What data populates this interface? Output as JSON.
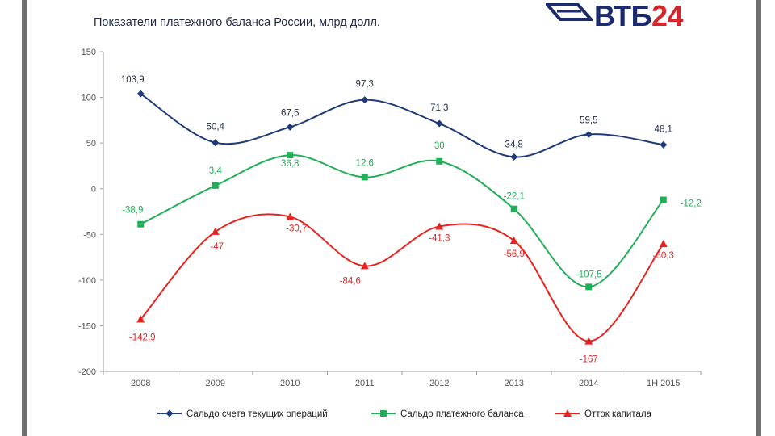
{
  "header": {
    "title": "Показатели платежного баланса России, млрд долл.",
    "logo_text_main": "ВТБ",
    "logo_text_num": "24",
    "logo_label": "ВТБ24"
  },
  "chart_data": {
    "type": "line",
    "title": "Показатели платежного баланса России, млрд долл.",
    "xlabel": "",
    "ylabel": "",
    "categories": [
      "2008",
      "2009",
      "2010",
      "2011",
      "2012",
      "2013",
      "2014",
      "1Н 2015"
    ],
    "ylim": [
      -200,
      150
    ],
    "yticks": [
      150,
      100,
      50,
      0,
      -50,
      -100,
      -150,
      -200
    ],
    "grid": false,
    "legend_position": "bottom",
    "series": [
      {
        "name": "Сальдо счета текущих операций",
        "color": "#1f3a78",
        "marker": "diamond",
        "values": [
          103.9,
          50.4,
          67.5,
          97.3,
          71.3,
          34.8,
          59.5,
          48.1
        ],
        "labels": [
          "103,9",
          "50,4",
          "67,5",
          "97,3",
          "71,3",
          "34,8",
          "59,5",
          "48,1"
        ]
      },
      {
        "name": "Сальдо платежного баланса",
        "color": "#21ae57",
        "marker": "square",
        "values": [
          -38.9,
          3.4,
          36.8,
          12.6,
          30,
          -22.1,
          -107.5,
          -12.2
        ],
        "labels": [
          "-38,9",
          "3,4",
          "36,8",
          "12,6",
          "30",
          "-22,1",
          "-107,5",
          "-12,2"
        ]
      },
      {
        "name": "Отток капитала",
        "color": "#e8231f",
        "marker": "triangle",
        "values": [
          -142.9,
          -47,
          -30.7,
          -84.6,
          -41.3,
          -56.9,
          -167,
          -60.3
        ],
        "labels": [
          "-142,9",
          "-47",
          "-30,7",
          "-84,6",
          "-41,3",
          "-56,9",
          "-167",
          "-60,3"
        ]
      }
    ]
  }
}
